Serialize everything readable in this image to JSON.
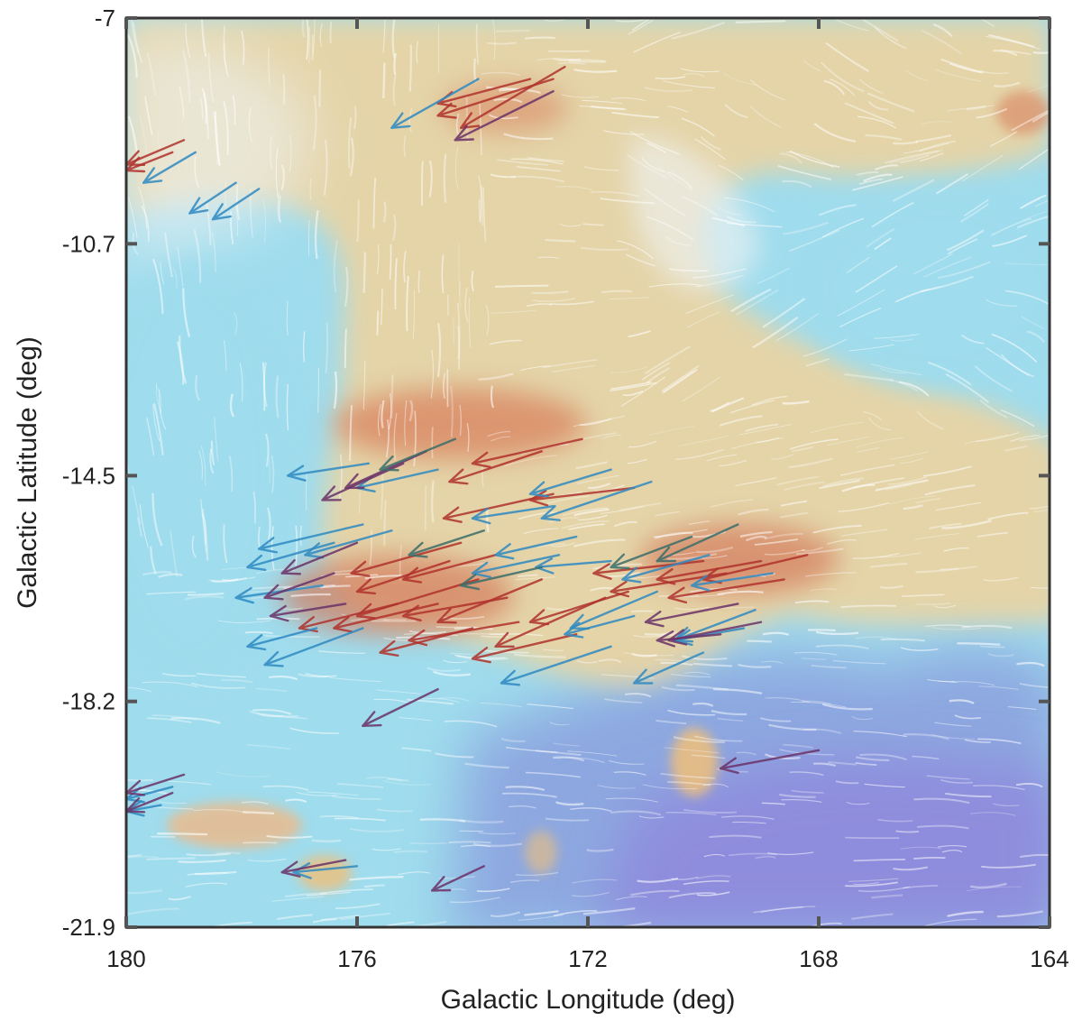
{
  "chart_data": {
    "type": "vector-field map",
    "title": "",
    "xlabel": "Galactic Longitude (deg)",
    "ylabel": "Galactic Latitude (deg)",
    "x_reversed": true,
    "xlim": [
      180,
      164
    ],
    "ylim": [
      -21.9,
      -7
    ],
    "x_ticks": [
      "180",
      "176",
      "172",
      "168",
      "164"
    ],
    "y_ticks": [
      "-7",
      "-10.7",
      "-14.5",
      "-18.2",
      "-21.9"
    ],
    "grid": false,
    "background": "intensity map with drapery line-integral texture: orange/red high, cyan/blue/violet low",
    "colors": {
      "cyan": "#8fd9ec",
      "blue": "#7f98dc",
      "violet": "#8f86dc",
      "orange": "#f0c07a",
      "red": "#d47a5c",
      "arrow_blue": "#2f8ac2",
      "arrow_red": "#b0322c",
      "arrow_purple": "#6a3268",
      "arrow_teal": "#3a6e6a"
    },
    "series": [
      {
        "kind": "arrow",
        "color": "arrow_red",
        "vectors": [
          [
            172.4,
            -7.8,
            174.2,
            -8.8
          ],
          [
            172.6,
            -8.0,
            174.6,
            -8.6
          ],
          [
            173.0,
            -8.0,
            174.6,
            -8.4
          ],
          [
            179.0,
            -9.0,
            180.0,
            -9.4
          ],
          [
            179.2,
            -9.2,
            180.0,
            -9.5
          ],
          [
            172.1,
            -13.9,
            174.0,
            -14.3
          ],
          [
            172.8,
            -14.1,
            174.4,
            -14.6
          ],
          [
            171.2,
            -14.7,
            173.0,
            -14.9
          ],
          [
            172.6,
            -14.8,
            174.5,
            -15.2
          ],
          [
            174.2,
            -15.6,
            176.1,
            -16.1
          ],
          [
            174.4,
            -15.9,
            176.0,
            -16.4
          ],
          [
            173.6,
            -15.8,
            175.2,
            -16.2
          ],
          [
            173.9,
            -16.2,
            176.0,
            -16.8
          ],
          [
            173.4,
            -16.5,
            175.2,
            -16.8
          ],
          [
            174.6,
            -16.6,
            176.4,
            -17.0
          ],
          [
            173.2,
            -16.9,
            175.1,
            -17.2
          ],
          [
            174.0,
            -17.0,
            175.6,
            -17.4
          ],
          [
            172.8,
            -16.2,
            174.6,
            -16.9
          ],
          [
            170.0,
            -15.9,
            171.9,
            -16.1
          ],
          [
            169.6,
            -16.1,
            171.6,
            -16.4
          ],
          [
            169.0,
            -15.9,
            170.8,
            -16.2
          ],
          [
            168.2,
            -15.8,
            170.0,
            -16.2
          ],
          [
            168.6,
            -16.2,
            170.6,
            -16.5
          ],
          [
            171.3,
            -16.4,
            173.0,
            -16.9
          ],
          [
            171.7,
            -16.5,
            173.6,
            -17.3
          ],
          [
            172.2,
            -17.1,
            174.0,
            -17.5
          ],
          [
            175.3,
            -16.6,
            177.0,
            -17.0
          ]
        ]
      },
      {
        "kind": "arrow",
        "color": "arrow_blue",
        "vectors": [
          [
            173.9,
            -8.0,
            175.4,
            -8.8
          ],
          [
            178.8,
            -9.2,
            179.7,
            -9.7
          ],
          [
            178.1,
            -9.7,
            178.9,
            -10.2
          ],
          [
            177.7,
            -9.8,
            178.5,
            -10.3
          ],
          [
            175.8,
            -14.3,
            177.2,
            -14.5
          ],
          [
            174.6,
            -14.4,
            176.0,
            -14.7
          ],
          [
            171.6,
            -14.4,
            173.0,
            -14.8
          ],
          [
            170.9,
            -14.6,
            172.8,
            -15.2
          ],
          [
            172.6,
            -15.0,
            174.0,
            -15.2
          ],
          [
            175.4,
            -15.4,
            176.9,
            -15.8
          ],
          [
            175.9,
            -15.3,
            177.7,
            -15.7
          ],
          [
            176.4,
            -15.6,
            177.9,
            -16.0
          ],
          [
            176.6,
            -16.3,
            178.1,
            -16.5
          ],
          [
            176.7,
            -17.0,
            177.9,
            -17.3
          ],
          [
            175.9,
            -17.0,
            177.6,
            -17.6
          ],
          [
            172.2,
            -15.5,
            173.6,
            -15.8
          ],
          [
            172.5,
            -15.8,
            174.0,
            -16.1
          ],
          [
            171.6,
            -15.9,
            172.9,
            -16.0
          ],
          [
            170.8,
            -16.4,
            172.3,
            -17.0
          ],
          [
            171.2,
            -16.8,
            172.4,
            -17.1
          ],
          [
            169.9,
            -15.8,
            171.4,
            -16.2
          ],
          [
            171.6,
            -17.3,
            173.5,
            -17.9
          ],
          [
            170.0,
            -17.4,
            171.2,
            -17.9
          ],
          [
            169.3,
            -17.0,
            170.5,
            -17.2
          ],
          [
            169.1,
            -16.7,
            170.5,
            -17.2
          ],
          [
            168.8,
            -16.1,
            170.2,
            -16.3
          ],
          [
            179.2,
            -19.6,
            180.0,
            -19.8
          ],
          [
            179.4,
            -19.9,
            180.0,
            -20.0
          ],
          [
            176.0,
            -20.9,
            177.1,
            -21.0
          ]
        ]
      },
      {
        "kind": "arrow",
        "color": "arrow_purple",
        "vectors": [
          [
            172.6,
            -8.2,
            174.3,
            -9.0
          ],
          [
            174.8,
            -14.1,
            176.2,
            -14.7
          ],
          [
            175.2,
            -14.3,
            176.6,
            -14.9
          ],
          [
            176.0,
            -15.6,
            177.3,
            -16.1
          ],
          [
            176.4,
            -16.1,
            177.6,
            -16.5
          ],
          [
            176.2,
            -16.6,
            177.5,
            -16.8
          ],
          [
            169.4,
            -16.6,
            171.0,
            -16.9
          ],
          [
            169.0,
            -16.9,
            170.6,
            -17.2
          ],
          [
            169.7,
            -17.1,
            170.8,
            -17.2
          ],
          [
            174.6,
            -18.0,
            175.9,
            -18.6
          ],
          [
            168.0,
            -19.0,
            169.7,
            -19.3
          ],
          [
            179.0,
            -19.4,
            180.0,
            -19.7
          ],
          [
            179.2,
            -19.7,
            180.0,
            -20.0
          ],
          [
            176.2,
            -20.8,
            177.3,
            -21.0
          ],
          [
            173.8,
            -20.9,
            174.7,
            -21.3
          ]
        ]
      },
      {
        "kind": "arrow",
        "color": "arrow_teal",
        "vectors": [
          [
            174.3,
            -13.9,
            175.6,
            -14.4
          ],
          [
            170.2,
            -15.5,
            171.6,
            -16.0
          ],
          [
            169.4,
            -15.3,
            170.8,
            -15.9
          ],
          [
            173.8,
            -15.4,
            175.1,
            -15.8
          ],
          [
            172.8,
            -16.0,
            174.2,
            -16.3
          ]
        ]
      }
    ]
  }
}
